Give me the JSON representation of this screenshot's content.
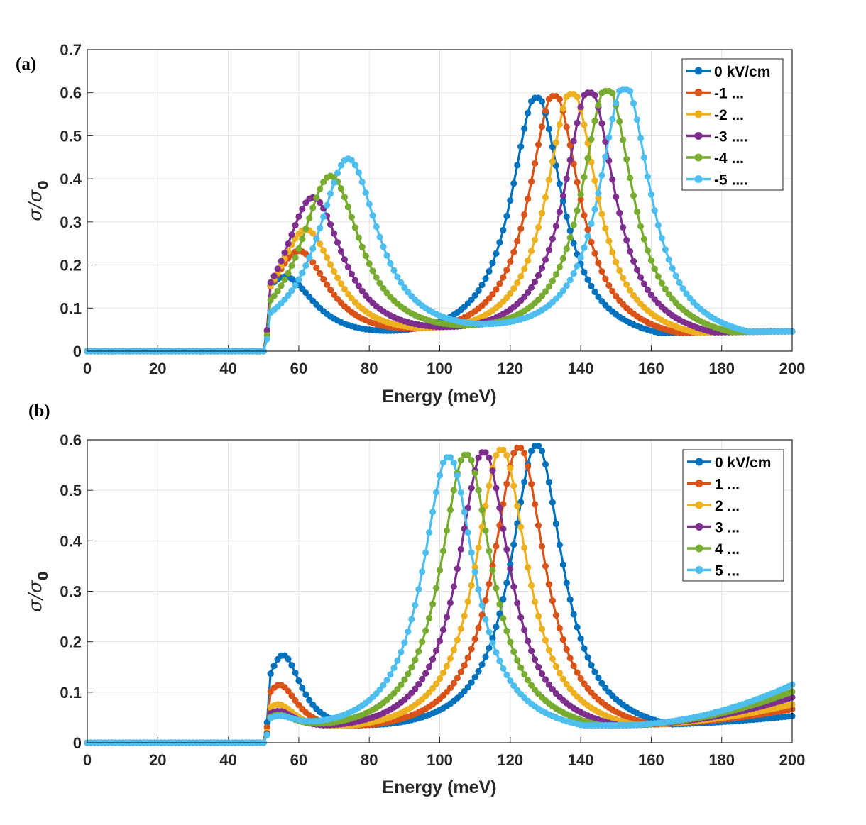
{
  "chart_data": [
    {
      "panel_label": "(a)",
      "type": "line",
      "xlabel": "Energy (meV)",
      "ylabel": {
        "symbol": "σ/σ",
        "subscript": "0"
      },
      "xlim": [
        0,
        200
      ],
      "ylim": [
        0,
        0.7
      ],
      "x_ticks": [
        "0",
        "20",
        "40",
        "60",
        "80",
        "100",
        "120",
        "140",
        "160",
        "180",
        "200"
      ],
      "y_ticks": [
        "0",
        "0.1",
        "0.2",
        "0.3",
        "0.4",
        "0.5",
        "0.6",
        "0.7"
      ],
      "grid": true,
      "legend_position": "top-right",
      "onset_energy": 50,
      "series": [
        {
          "name": "0 kV/cm",
          "color": "#0072BD",
          "peak1": {
            "x": 56,
            "y": 0.16
          },
          "peak2": {
            "x": 127.5,
            "y": 0.588
          },
          "value_at_100": 0.075,
          "value_at_200": 0.048
        },
        {
          "name": "-1 ...",
          "color": "#D95319",
          "peak1": {
            "x": 60,
            "y": 0.22
          },
          "peak2": {
            "x": 132.5,
            "y": 0.592
          },
          "value_at_100": 0.06,
          "value_at_200": 0.04
        },
        {
          "name": "-2 ...",
          "color": "#EDB120",
          "peak1": {
            "x": 62,
            "y": 0.27
          },
          "peak2": {
            "x": 137.5,
            "y": 0.597
          },
          "value_at_100": 0.055,
          "value_at_200": 0.036
        },
        {
          "name": "-3 ....",
          "color": "#7E2F8E",
          "peak1": {
            "x": 64,
            "y": 0.345
          },
          "peak2": {
            "x": 142.5,
            "y": 0.6
          },
          "value_at_100": 0.052,
          "value_at_200": 0.033
        },
        {
          "name": "-4 ...",
          "color": "#77AC30",
          "peak1": {
            "x": 69,
            "y": 0.395
          },
          "peak2": {
            "x": 147.5,
            "y": 0.604
          },
          "value_at_100": 0.055,
          "value_at_200": 0.031
        },
        {
          "name": "-5 ....",
          "color": "#4DBEEE",
          "peak1": {
            "x": 74,
            "y": 0.435
          },
          "peak2": {
            "x": 152.5,
            "y": 0.608
          },
          "value_at_100": 0.072,
          "value_at_200": 0.03
        }
      ]
    },
    {
      "panel_label": "(b)",
      "type": "line",
      "xlabel": "Energy (meV)",
      "ylabel": {
        "symbol": "σ/σ",
        "subscript": "0"
      },
      "xlim": [
        0,
        200
      ],
      "ylim": [
        0,
        0.6
      ],
      "x_ticks": [
        "0",
        "20",
        "40",
        "60",
        "80",
        "100",
        "120",
        "140",
        "160",
        "180",
        "200"
      ],
      "y_ticks": [
        "0",
        "0.1",
        "0.2",
        "0.3",
        "0.4",
        "0.5",
        "0.6"
      ],
      "grid": true,
      "legend_position": "top-right",
      "onset_energy": 50,
      "series": [
        {
          "name": "0 kV/cm",
          "color": "#0072BD",
          "peak1": {
            "x": 55.5,
            "y": 0.16
          },
          "peak2": {
            "x": 127.5,
            "y": 0.588
          },
          "value_at_200": 0.046
        },
        {
          "name": "1 ...",
          "color": "#D95319",
          "peak1": {
            "x": 54.5,
            "y": 0.1
          },
          "peak2": {
            "x": 122.5,
            "y": 0.584
          },
          "value_at_200": 0.058
        },
        {
          "name": "2 ...",
          "color": "#EDB120",
          "peak1": {
            "x": 54,
            "y": 0.06
          },
          "peak2": {
            "x": 117.5,
            "y": 0.58
          },
          "value_at_200": 0.066
        },
        {
          "name": "3 ...",
          "color": "#7E2F8E",
          "peak1": {
            "x": 54,
            "y": 0.045
          },
          "peak2": {
            "x": 112.5,
            "y": 0.575
          },
          "value_at_200": 0.078
        },
        {
          "name": "4 ...",
          "color": "#77AC30",
          "peak1": {
            "x": 54,
            "y": 0.035
          },
          "peak2": {
            "x": 107.5,
            "y": 0.57
          },
          "value_at_200": 0.088
        },
        {
          "name": "5 ...",
          "color": "#4DBEEE",
          "peak1": {
            "x": 54,
            "y": 0.03
          },
          "peak2": {
            "x": 102.5,
            "y": 0.565
          },
          "value_at_200": 0.1
        }
      ]
    }
  ]
}
